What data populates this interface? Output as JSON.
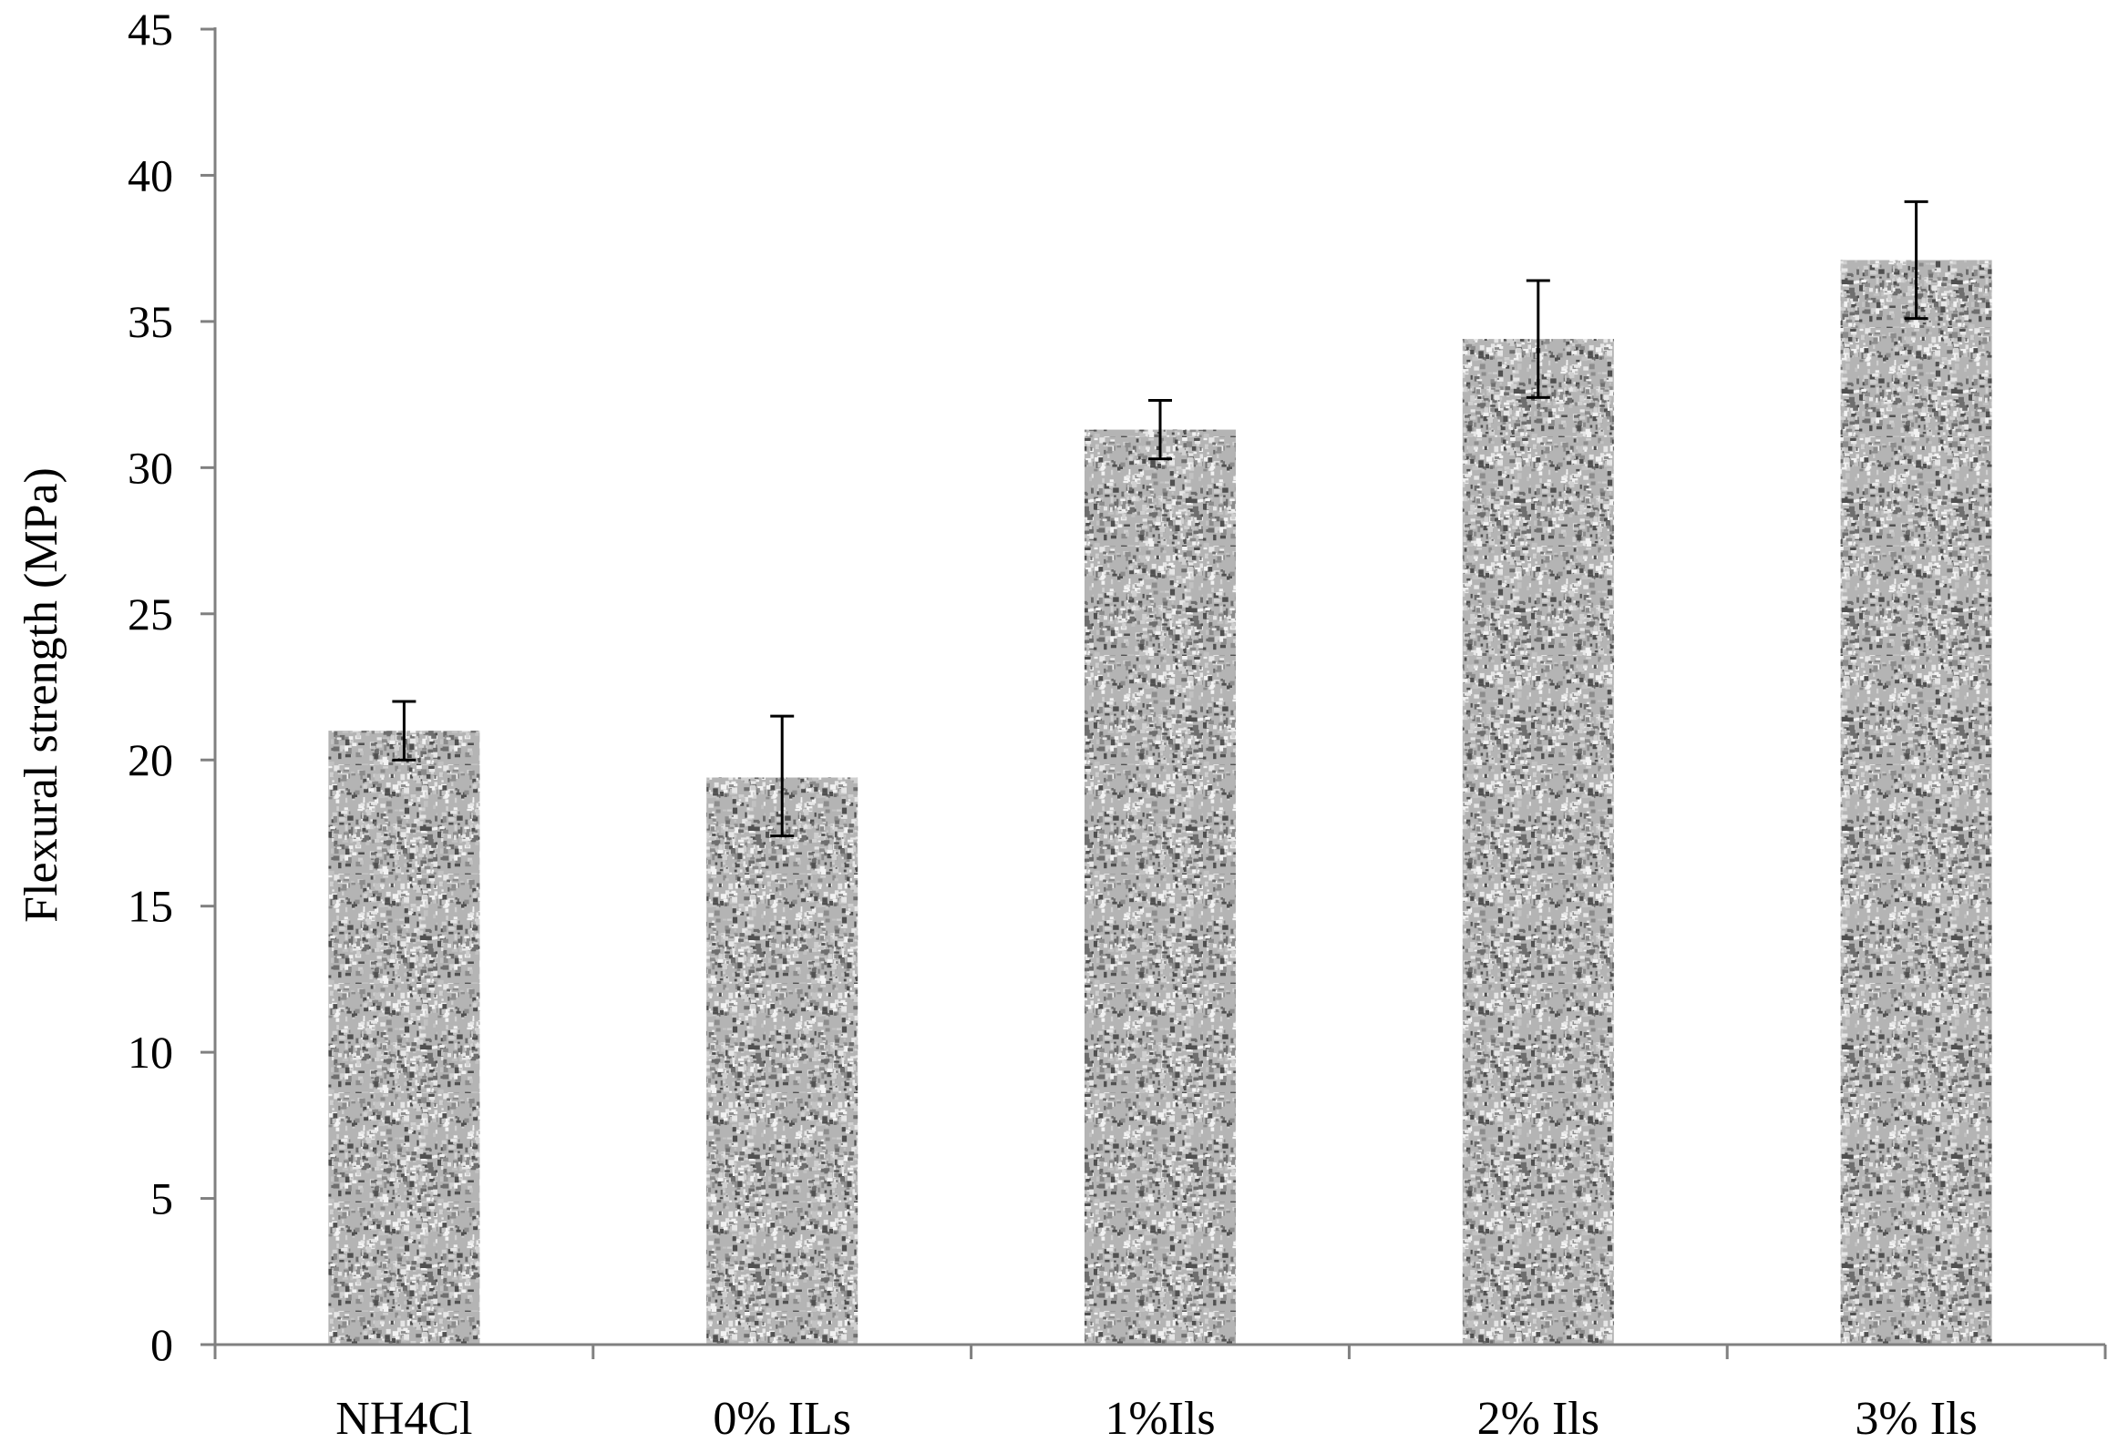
{
  "chart_data": {
    "type": "bar",
    "title": "",
    "xlabel": "",
    "ylabel": "Flexural strength (MPa)",
    "ylim": [
      0,
      45
    ],
    "yticks": [
      0,
      5,
      10,
      15,
      20,
      25,
      30,
      35,
      40,
      45
    ],
    "ytick_labels": [
      "0",
      "5",
      "10",
      "15",
      "20",
      "25",
      "30",
      "35",
      "40",
      "45"
    ],
    "categories": [
      "NH4Cl",
      "0% ILs",
      "1%Ils",
      "2% Ils",
      "3% Ils"
    ],
    "values": [
      21.0,
      19.4,
      31.3,
      34.4,
      37.1
    ],
    "error_low": [
      20.0,
      17.4,
      30.3,
      32.4,
      35.1
    ],
    "error_high": [
      22.0,
      21.5,
      32.3,
      36.4,
      39.1
    ],
    "grid": false,
    "legend": "none",
    "bar_fill": "gray speckled texture",
    "colors": {
      "axis": "#808080",
      "errorbar": "#000000",
      "bar_light": "#d8d8d8",
      "bar_dark": "#3c3c3c"
    }
  }
}
